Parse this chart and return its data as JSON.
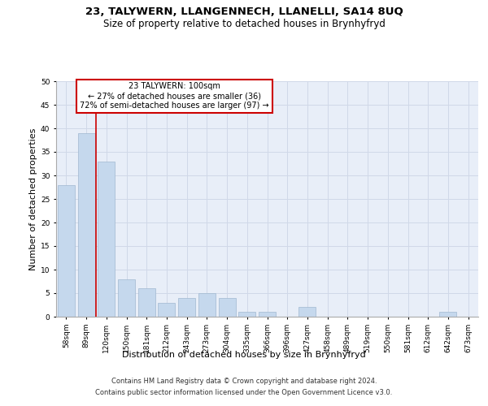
{
  "title": "23, TALYWERN, LLANGENNECH, LLANELLI, SA14 8UQ",
  "subtitle": "Size of property relative to detached houses in Brynhyfryd",
  "xlabel": "Distribution of detached houses by size in Brynhyfryd",
  "ylabel": "Number of detached properties",
  "categories": [
    "58sqm",
    "89sqm",
    "120sqm",
    "150sqm",
    "181sqm",
    "212sqm",
    "243sqm",
    "273sqm",
    "304sqm",
    "335sqm",
    "366sqm",
    "396sqm",
    "427sqm",
    "458sqm",
    "489sqm",
    "519sqm",
    "550sqm",
    "581sqm",
    "612sqm",
    "642sqm",
    "673sqm"
  ],
  "values": [
    28,
    39,
    33,
    8,
    6,
    3,
    4,
    5,
    4,
    1,
    1,
    0,
    2,
    0,
    0,
    0,
    0,
    0,
    0,
    1,
    0
  ],
  "bar_color": "#c5d8ed",
  "bar_edgecolor": "#a0b8d0",
  "property_line_color": "#cc0000",
  "annotation_title": "23 TALYWERN: 100sqm",
  "annotation_line1": "← 27% of detached houses are smaller (36)",
  "annotation_line2": "72% of semi-detached houses are larger (97) →",
  "annotation_box_edgecolor": "#cc0000",
  "annotation_box_facecolor": "#ffffff",
  "ylim": [
    0,
    50
  ],
  "yticks": [
    0,
    5,
    10,
    15,
    20,
    25,
    30,
    35,
    40,
    45,
    50
  ],
  "grid_color": "#d0d8e8",
  "background_color": "#e8eef8",
  "footer_line1": "Contains HM Land Registry data © Crown copyright and database right 2024.",
  "footer_line2": "Contains public sector information licensed under the Open Government Licence v3.0.",
  "title_fontsize": 9.5,
  "subtitle_fontsize": 8.5,
  "xlabel_fontsize": 8,
  "ylabel_fontsize": 8,
  "tick_fontsize": 6.5,
  "annotation_fontsize": 7,
  "footer_fontsize": 6
}
